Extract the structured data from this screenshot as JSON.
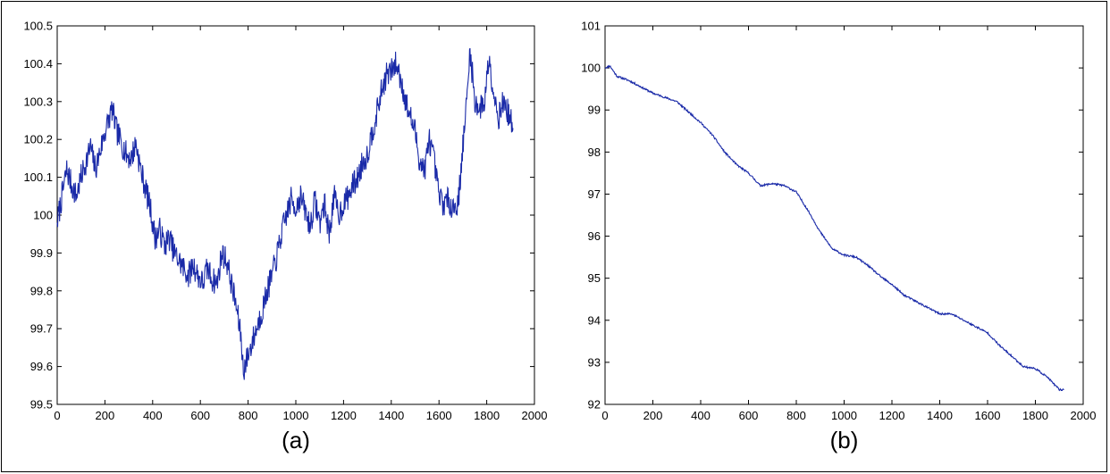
{
  "chart_data": [
    {
      "type": "line",
      "caption": "(a)",
      "title": "",
      "xlabel": "",
      "ylabel": "",
      "xlim": [
        0,
        2000
      ],
      "ylim": [
        99.5,
        100.5
      ],
      "x_ticks": [
        0,
        200,
        400,
        600,
        800,
        1000,
        1200,
        1400,
        1600,
        1800,
        2000
      ],
      "x_tick_labels": [
        "0",
        "200",
        "400",
        "600",
        "800",
        "1000",
        "1200",
        "1400",
        "1600",
        "1800",
        "2000"
      ],
      "y_ticks": [
        99.5,
        99.6,
        99.7,
        99.8,
        99.9,
        100,
        100.1,
        100.2,
        100.3,
        100.4,
        100.5
      ],
      "y_tick_labels": [
        "99.5",
        "99.6",
        "99.7",
        "99.8",
        "99.9",
        "100",
        "100.1",
        "100.2",
        "100.3",
        "100.4",
        "100.5"
      ],
      "grid": false,
      "color": "#1a2aa8",
      "series": [
        {
          "x": [
            0,
            20,
            40,
            60,
            80,
            100,
            120,
            140,
            160,
            180,
            200,
            220,
            230,
            250,
            270,
            290,
            310,
            330,
            350,
            370,
            390,
            410,
            430,
            450,
            470,
            490,
            510,
            530,
            550,
            570,
            590,
            610,
            630,
            650,
            670,
            690,
            710,
            730,
            750,
            770,
            780,
            800,
            820,
            840,
            860,
            880,
            900,
            920,
            940,
            960,
            980,
            1000,
            1020,
            1040,
            1060,
            1080,
            1100,
            1120,
            1140,
            1160,
            1180,
            1200,
            1220,
            1240,
            1260,
            1280,
            1300,
            1320,
            1340,
            1360,
            1380,
            1400,
            1420,
            1440,
            1460,
            1480,
            1500,
            1520,
            1540,
            1560,
            1580,
            1600,
            1620,
            1640,
            1660,
            1680,
            1700,
            1720,
            1730,
            1750,
            1770,
            1790,
            1810,
            1830,
            1850,
            1870,
            1890,
            1910
          ],
          "y": [
            99.98,
            100.05,
            100.12,
            100.08,
            100.05,
            100.1,
            100.14,
            100.18,
            100.12,
            100.17,
            100.22,
            100.26,
            100.28,
            100.22,
            100.19,
            100.16,
            100.15,
            100.19,
            100.12,
            100.07,
            100.02,
            99.94,
            99.96,
            99.92,
            99.94,
            99.9,
            99.88,
            99.86,
            99.84,
            99.87,
            99.84,
            99.82,
            99.86,
            99.83,
            99.82,
            99.9,
            99.88,
            99.82,
            99.76,
            99.68,
            99.59,
            99.63,
            99.67,
            99.71,
            99.75,
            99.8,
            99.84,
            99.89,
            99.95,
            100.0,
            100.04,
            100.02,
            100.05,
            100.01,
            99.97,
            100.04,
            99.98,
            100.03,
            99.95,
            100.05,
            100.0,
            100.03,
            100.05,
            100.08,
            100.1,
            100.14,
            100.16,
            100.22,
            100.27,
            100.33,
            100.37,
            100.38,
            100.4,
            100.36,
            100.3,
            100.26,
            100.22,
            100.14,
            100.12,
            100.2,
            100.14,
            100.05,
            100.03,
            100.04,
            100.02,
            100.03,
            100.18,
            100.33,
            100.44,
            100.3,
            100.28,
            100.3,
            100.42,
            100.32,
            100.26,
            100.3,
            100.27,
            100.23
          ]
        }
      ]
    },
    {
      "type": "line",
      "caption": "(b)",
      "title": "",
      "xlabel": "",
      "ylabel": "",
      "xlim": [
        0,
        2000
      ],
      "ylim": [
        92,
        101
      ],
      "x_ticks": [
        0,
        200,
        400,
        600,
        800,
        1000,
        1200,
        1400,
        1600,
        1800,
        2000
      ],
      "x_tick_labels": [
        "0",
        "200",
        "400",
        "600",
        "800",
        "1000",
        "1200",
        "1400",
        "1600",
        "1800",
        "2000"
      ],
      "y_ticks": [
        92,
        93,
        94,
        95,
        96,
        97,
        98,
        99,
        100,
        101
      ],
      "y_tick_labels": [
        "92",
        "93",
        "94",
        "95",
        "96",
        "97",
        "98",
        "99",
        "100",
        "101"
      ],
      "grid": false,
      "color": "#1a2aa8",
      "series": [
        {
          "x": [
            0,
            20,
            50,
            100,
            150,
            200,
            250,
            300,
            350,
            400,
            450,
            500,
            550,
            600,
            650,
            700,
            750,
            800,
            850,
            900,
            950,
            1000,
            1050,
            1100,
            1150,
            1200,
            1250,
            1300,
            1350,
            1400,
            1450,
            1500,
            1550,
            1600,
            1650,
            1700,
            1750,
            1800,
            1850,
            1900,
            1920
          ],
          "y": [
            100.0,
            100.05,
            99.8,
            99.7,
            99.55,
            99.4,
            99.3,
            99.2,
            98.95,
            98.7,
            98.4,
            98.0,
            97.7,
            97.5,
            97.2,
            97.25,
            97.2,
            97.05,
            96.6,
            96.1,
            95.7,
            95.55,
            95.5,
            95.3,
            95.05,
            94.85,
            94.6,
            94.45,
            94.3,
            94.15,
            94.15,
            94.0,
            93.85,
            93.7,
            93.4,
            93.15,
            92.9,
            92.85,
            92.65,
            92.35,
            92.35
          ]
        }
      ]
    }
  ]
}
